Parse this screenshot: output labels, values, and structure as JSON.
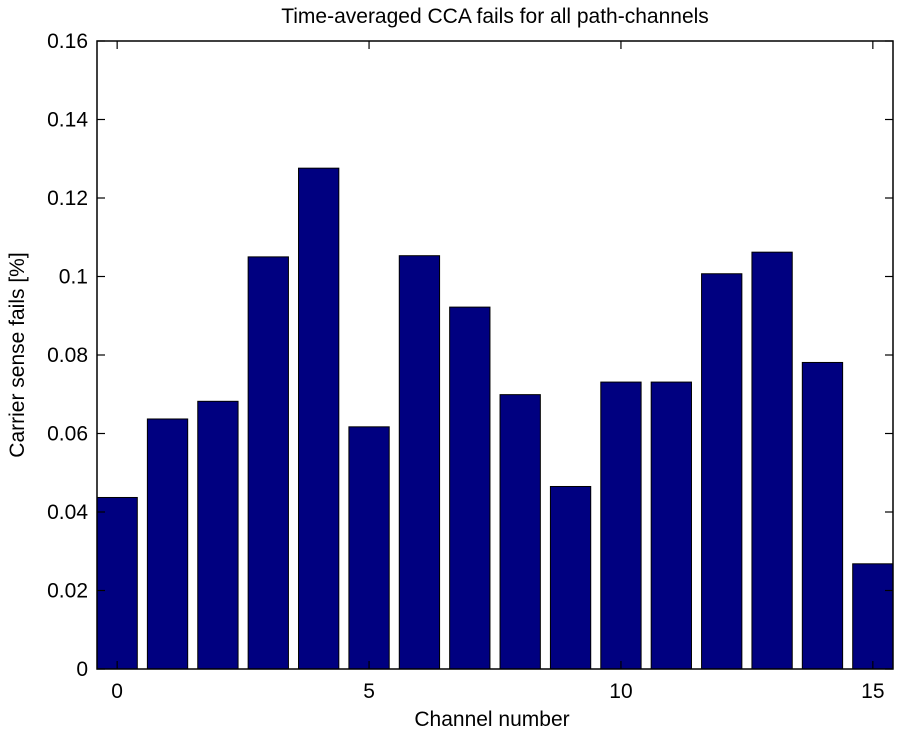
{
  "chart_data": {
    "type": "bar",
    "title": "Time-averaged CCA fails for all path-channels",
    "xlabel": "Channel number",
    "ylabel": "Carrier sense fails [%]",
    "x": [
      0,
      1,
      2,
      3,
      4,
      5,
      6,
      7,
      8,
      9,
      10,
      11,
      12,
      13,
      14,
      15
    ],
    "values": [
      0.0437,
      0.0637,
      0.0682,
      0.105,
      0.1276,
      0.0617,
      0.1053,
      0.0922,
      0.0699,
      0.0465,
      0.0731,
      0.0731,
      0.1007,
      0.1062,
      0.0781,
      0.0268
    ],
    "xlim": [
      -0.4,
      15.4
    ],
    "ylim": [
      0,
      0.16
    ],
    "xticks": [
      0,
      5,
      10,
      15
    ],
    "yticks": [
      0,
      0.02,
      0.04,
      0.06,
      0.08,
      0.1,
      0.12,
      0.14,
      0.16
    ],
    "xtick_labels": [
      "0",
      "5",
      "10",
      "15"
    ],
    "ytick_labels": [
      "0",
      "0.02",
      "0.04",
      "0.06",
      "0.08",
      "0.1",
      "0.12",
      "0.14",
      "0.16"
    ],
    "bar_width": 0.8,
    "grid": false,
    "colors": {
      "bar_fill": "#000080",
      "bar_edge": "#000000",
      "axis": "#000000"
    }
  }
}
